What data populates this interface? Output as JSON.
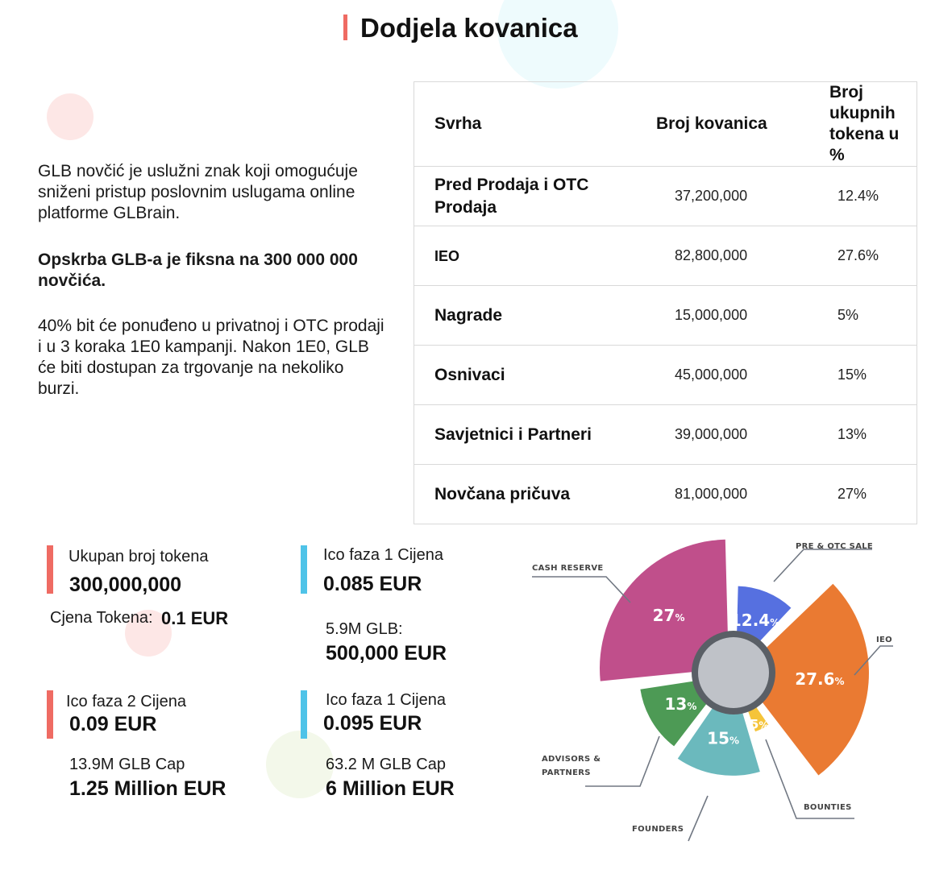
{
  "header": {
    "title": "Dodjela kovanica"
  },
  "intro": {
    "paragraph1": "GLB novčić je uslužni znak koji omogućuje sniženi pristup poslovnim uslugama online platforme GLBrain.",
    "paragraph2": "Opskrba GLB-a je fiksna na 300 000 000 novčića.",
    "paragraph3": "40% bit će ponuđeno u privatnoj i OTC prodaji i u 3 koraka 1E0 kampanji. Nakon 1E0, GLB će biti dostupan za trgovanje na nekoliko burzi."
  },
  "table": {
    "headers": [
      "Svrha",
      "Broj kovanica",
      "Broj ukupnih tokena u %"
    ],
    "rows": [
      {
        "purpose": "Pred Prodaja i OTC Prodaja",
        "coins": "37,200,000",
        "percent": "12.4%"
      },
      {
        "purpose": "IEO",
        "coins": "82,800,000",
        "percent": "27.6%"
      },
      {
        "purpose": "Nagrade",
        "coins": "15,000,000",
        "percent": "5%"
      },
      {
        "purpose": "Osnivaci",
        "coins": "45,000,000",
        "percent": "15%"
      },
      {
        "purpose": "Savjetnici i Partneri",
        "coins": "39,000,000",
        "percent": "13%"
      },
      {
        "purpose": "Novčana pričuva",
        "coins": "81,000,000",
        "percent": "27%"
      }
    ]
  },
  "stats": {
    "total": {
      "label": "Ukupan broj tokena",
      "value": "300,000,000",
      "price_label": "Cjena Tokena:",
      "price_value": "0.1 EUR"
    },
    "phase1": {
      "label": "Ico faza 1 Cijena",
      "value": "0.085 EUR",
      "sub_label": "5.9M GLB:",
      "sub_value": "500,000 EUR"
    },
    "phase2": {
      "label": "Ico faza 2 Cijena",
      "value": "0.09 EUR",
      "sub_label": "13.9M GLB Cap",
      "sub_value": "1.25 Million EUR"
    },
    "phase3": {
      "label": "Ico faza 1 Cijena",
      "value": "0.095 EUR",
      "sub_label": "63.2 M GLB Cap",
      "sub_value": "6 Million EUR"
    }
  },
  "colors": {
    "accent_red": "#ef6b63",
    "accent_blue": "#4fc3e8"
  },
  "chart_data": {
    "type": "pie",
    "slices": [
      {
        "label": "PRE & OTC SALE",
        "value": 12.4,
        "display": "12.4",
        "color": "#5670e0"
      },
      {
        "label": "IEO",
        "value": 27.6,
        "display": "27.6",
        "color": "#ea7a32"
      },
      {
        "label": "BOUNTIES",
        "value": 5,
        "display": "5",
        "color": "#f5c43a"
      },
      {
        "label": "FOUNDERS",
        "value": 15,
        "display": "15",
        "color": "#6bb9bd"
      },
      {
        "label": "ADVISORS & PARTNERS",
        "value": 13,
        "display": "13",
        "color": "#4d9a55"
      },
      {
        "label": "CASH RESERVE",
        "value": 27,
        "display": "27",
        "color": "#c04f8b"
      }
    ],
    "pct_symbol": "%",
    "legend_placement": "callouts around chart"
  }
}
